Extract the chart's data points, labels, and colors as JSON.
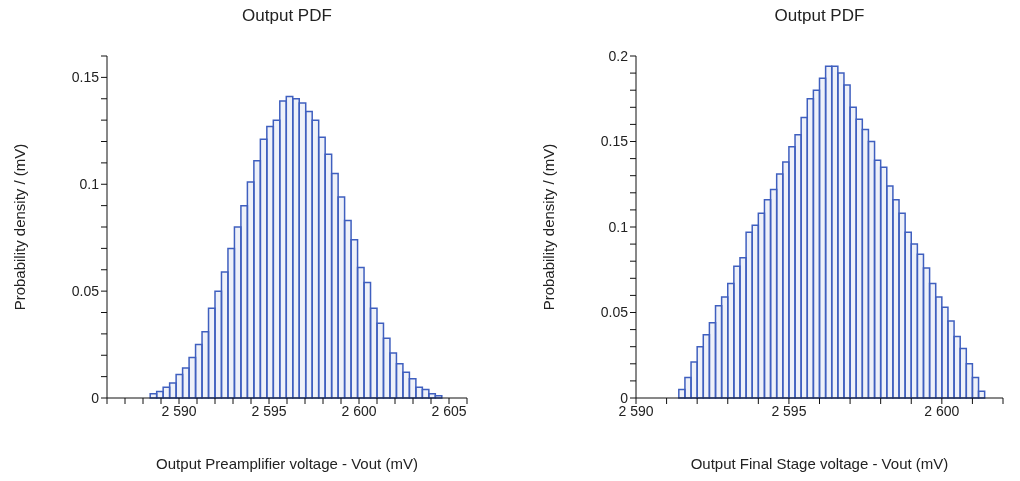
{
  "chart_data": [
    {
      "type": "histogram",
      "title": "Output PDF",
      "xlabel": "Output Preamplifier voltage - Vout (mV)",
      "ylabel": "Probability density / (mV)",
      "color": "#3f5fbf",
      "bins": [
        2588.4,
        2588.76,
        2589.12,
        2589.48,
        2589.84,
        2590.2,
        2590.56,
        2590.92,
        2591.28,
        2591.64,
        2592.0,
        2592.36,
        2592.72,
        2593.08,
        2593.44,
        2593.8,
        2594.16,
        2594.52,
        2594.88,
        2595.24,
        2595.6,
        2595.96,
        2596.32,
        2596.68,
        2597.04,
        2597.4,
        2597.76,
        2598.12,
        2598.48,
        2598.84,
        2599.2,
        2599.56,
        2599.92,
        2600.28,
        2600.64,
        2601.0,
        2601.36,
        2601.72,
        2602.08,
        2602.44,
        2602.8,
        2603.16,
        2603.52,
        2603.88,
        2604.24,
        2604.6
      ],
      "values": [
        0.002,
        0.003,
        0.005,
        0.007,
        0.011,
        0.014,
        0.019,
        0.025,
        0.031,
        0.042,
        0.05,
        0.059,
        0.07,
        0.08,
        0.09,
        0.101,
        0.111,
        0.121,
        0.127,
        0.13,
        0.139,
        0.141,
        0.14,
        0.138,
        0.134,
        0.13,
        0.122,
        0.114,
        0.105,
        0.094,
        0.083,
        0.074,
        0.061,
        0.054,
        0.042,
        0.035,
        0.028,
        0.021,
        0.016,
        0.012,
        0.009,
        0.005,
        0.004,
        0.002,
        0.001
      ],
      "xlim": [
        2586,
        2606
      ],
      "xticks": [
        {
          "value": 2586,
          "label": null
        },
        {
          "value": 2587,
          "label": null
        },
        {
          "value": 2588,
          "label": null
        },
        {
          "value": 2589,
          "label": null
        },
        {
          "value": 2590,
          "label": "2 590"
        },
        {
          "value": 2591,
          "label": null
        },
        {
          "value": 2592,
          "label": null
        },
        {
          "value": 2593,
          "label": null
        },
        {
          "value": 2594,
          "label": null
        },
        {
          "value": 2595,
          "label": "2 595"
        },
        {
          "value": 2596,
          "label": null
        },
        {
          "value": 2597,
          "label": null
        },
        {
          "value": 2598,
          "label": null
        },
        {
          "value": 2599,
          "label": null
        },
        {
          "value": 2600,
          "label": "2 600"
        },
        {
          "value": 2601,
          "label": null
        },
        {
          "value": 2602,
          "label": null
        },
        {
          "value": 2603,
          "label": null
        },
        {
          "value": 2604,
          "label": null
        },
        {
          "value": 2605,
          "label": "2 605"
        },
        {
          "value": 2606,
          "label": null
        }
      ],
      "ylim": [
        0,
        0.16
      ],
      "yticks": [
        0,
        {
          "value": 0.01,
          "label": null
        },
        {
          "value": 0.02,
          "label": null
        },
        {
          "value": 0.03,
          "label": null
        },
        {
          "value": 0.04,
          "label": null
        },
        0.05,
        {
          "value": 0.06,
          "label": null
        },
        {
          "value": 0.07,
          "label": null
        },
        {
          "value": 0.08,
          "label": null
        },
        {
          "value": 0.09,
          "label": null
        },
        0.1,
        {
          "value": 0.11,
          "label": null
        },
        {
          "value": 0.12,
          "label": null
        },
        {
          "value": 0.13,
          "label": null
        },
        {
          "value": 0.14,
          "label": null
        },
        0.15,
        {
          "value": 0.16,
          "label": null
        }
      ]
    },
    {
      "type": "histogram",
      "title": "Output PDF",
      "xlabel": "Output Final Stage voltage - Vout (mV)",
      "ylabel": "Probability density / (mV)",
      "color": "#3f5fbf",
      "bins": [
        2591.4,
        2591.6,
        2591.8,
        2592.0,
        2592.2,
        2592.4,
        2592.6,
        2592.8,
        2593.0,
        2593.2,
        2593.4,
        2593.6,
        2593.8,
        2594.0,
        2594.2,
        2594.4,
        2594.6,
        2594.8,
        2595.0,
        2595.2,
        2595.4,
        2595.6,
        2595.8,
        2596.0,
        2596.2,
        2596.4,
        2596.6,
        2596.8,
        2597.0,
        2597.2,
        2597.4,
        2597.6,
        2597.8,
        2598.0,
        2598.2,
        2598.4,
        2598.6,
        2598.8,
        2599.0,
        2599.2,
        2599.4,
        2599.6,
        2599.8,
        2600.0,
        2600.2,
        2600.4,
        2600.6,
        2600.8,
        2601.0,
        2601.2,
        2601.4
      ],
      "values": [
        0.005,
        0.012,
        0.021,
        0.03,
        0.037,
        0.044,
        0.054,
        0.059,
        0.067,
        0.077,
        0.082,
        0.097,
        0.101,
        0.108,
        0.116,
        0.122,
        0.131,
        0.138,
        0.147,
        0.154,
        0.164,
        0.175,
        0.18,
        0.187,
        0.194,
        0.194,
        0.19,
        0.183,
        0.17,
        0.163,
        0.157,
        0.15,
        0.139,
        0.135,
        0.124,
        0.116,
        0.108,
        0.097,
        0.09,
        0.084,
        0.076,
        0.067,
        0.059,
        0.053,
        0.045,
        0.036,
        0.029,
        0.02,
        0.012,
        0.004
      ],
      "xlim": [
        2590,
        2602
      ],
      "xticks": [
        {
          "value": 2590,
          "label": "2 590"
        },
        {
          "value": 2591,
          "label": null
        },
        {
          "value": 2592,
          "label": null
        },
        {
          "value": 2593,
          "label": null
        },
        {
          "value": 2594,
          "label": null
        },
        {
          "value": 2595,
          "label": "2 595"
        },
        {
          "value": 2596,
          "label": null
        },
        {
          "value": 2597,
          "label": null
        },
        {
          "value": 2598,
          "label": null
        },
        {
          "value": 2599,
          "label": null
        },
        {
          "value": 2600,
          "label": "2 600"
        },
        {
          "value": 2601,
          "label": null
        },
        {
          "value": 2602,
          "label": null
        }
      ],
      "ylim": [
        0,
        0.2
      ],
      "yticks": [
        0,
        {
          "value": 0.01,
          "label": null
        },
        {
          "value": 0.02,
          "label": null
        },
        {
          "value": 0.03,
          "label": null
        },
        {
          "value": 0.04,
          "label": null
        },
        0.05,
        {
          "value": 0.06,
          "label": null
        },
        {
          "value": 0.07,
          "label": null
        },
        {
          "value": 0.08,
          "label": null
        },
        {
          "value": 0.09,
          "label": null
        },
        0.1,
        {
          "value": 0.11,
          "label": null
        },
        {
          "value": 0.12,
          "label": null
        },
        {
          "value": 0.13,
          "label": null
        },
        {
          "value": 0.14,
          "label": null
        },
        0.15,
        {
          "value": 0.16,
          "label": null
        },
        {
          "value": 0.17,
          "label": null
        },
        {
          "value": 0.18,
          "label": null
        },
        {
          "value": 0.19,
          "label": null
        },
        0.2
      ]
    }
  ]
}
